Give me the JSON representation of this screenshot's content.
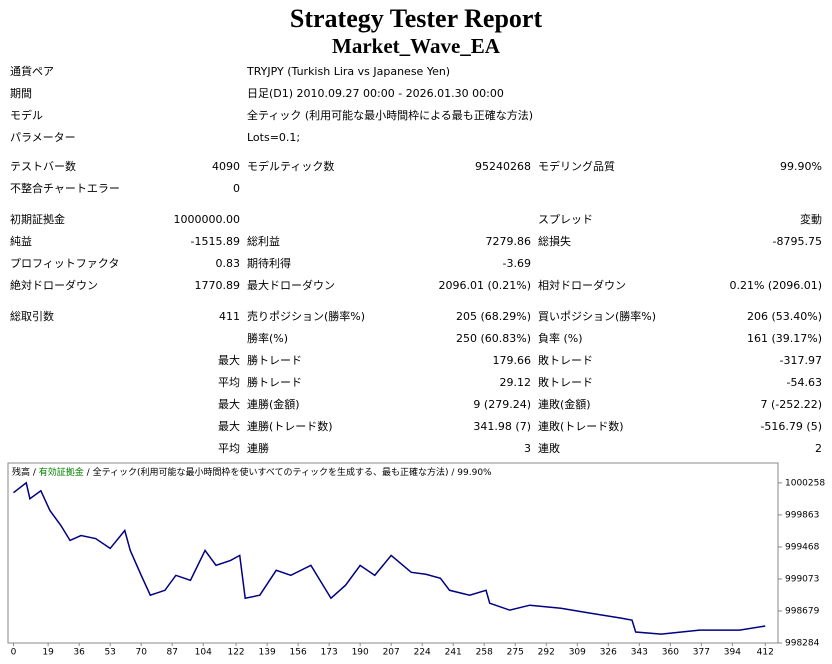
{
  "header": {
    "title": "Strategy Tester Report",
    "subtitle": "Market_Wave_EA"
  },
  "info": [
    [
      "通貨ペア",
      "TRYJPY (Turkish Lira vs Japanese Yen)"
    ],
    [
      "期間",
      "日足(D1) 2010.09.27 00:00 - 2026.01.30 00:00"
    ],
    [
      "モデル",
      "全ティック (利用可能な最小時間枠による最も正確な方法)"
    ],
    [
      "パラメーター",
      "Lots=0.1;"
    ]
  ],
  "stats": [
    [
      "テストバー数",
      "4090",
      "モデルティック数",
      "95240268",
      "モデリング品質",
      "99.90%"
    ],
    [
      "不整合チャートエラー",
      "0",
      null,
      null,
      null,
      null
    ],
    [
      "初期証拠金",
      "1000000.00",
      null,
      null,
      "スプレッド",
      "変動"
    ],
    [
      "純益",
      "-1515.89",
      "総利益",
      "7279.86",
      "総損失",
      "-8795.75"
    ],
    [
      "プロフィットファクタ",
      "0.83",
      "期待利得",
      "-3.69",
      null,
      null
    ],
    [
      "絶対ドローダウン",
      "1770.89",
      "最大ドローダウン",
      "2096.01 (0.21%)",
      "相対ドローダウン",
      "0.21% (2096.01)"
    ],
    [
      "総取引数",
      "411",
      "売りポジション(勝率%)",
      "205 (68.29%)",
      "買いポジション(勝率%)",
      "206 (53.40%)"
    ],
    [
      null,
      null,
      "勝率(%)",
      "250 (60.83%)",
      "負率 (%)",
      "161 (39.17%)"
    ],
    [
      null,
      "最大",
      "勝トレード",
      "179.66",
      "敗トレード",
      "-317.97"
    ],
    [
      null,
      "平均",
      "勝トレード",
      "29.12",
      "敗トレード",
      "-54.63"
    ],
    [
      null,
      "最大",
      "連勝(金額)",
      "9 (279.24)",
      "連敗(金額)",
      "7 (-252.22)"
    ],
    [
      null,
      "最大",
      "連勝(トレード数)",
      "341.98 (7)",
      "連敗(トレード数)",
      "-516.79 (5)"
    ],
    [
      null,
      "平均",
      "連勝",
      "3",
      "連敗",
      "2"
    ]
  ],
  "chart_data": {
    "type": "line",
    "series": [
      {
        "name": "残高",
        "color": "#000080",
        "x": [
          0,
          7,
          9,
          15,
          20,
          26,
          31,
          37,
          45,
          53,
          61,
          64,
          70,
          75,
          83,
          89,
          97,
          105,
          111,
          119,
          124,
          127,
          135,
          144,
          152,
          163,
          174,
          182,
          190,
          198,
          207,
          218,
          226,
          234,
          239,
          250,
          259,
          261,
          272,
          283,
          300,
          316,
          333,
          339,
          341,
          355,
          376,
          398,
          412
        ],
        "values": [
          1000137,
          1000259,
          1000063,
          1000161,
          999916,
          999732,
          999548,
          999609,
          999572,
          999450,
          999671,
          999425,
          999118,
          998873,
          998934,
          999118,
          999057,
          999425,
          999241,
          999302,
          999364,
          998836,
          998873,
          999180,
          999118,
          999241,
          998836,
          998996,
          999241,
          999118,
          999364,
          999155,
          999131,
          999082,
          998934,
          998873,
          998934,
          998775,
          998689,
          998750,
          998713,
          998652,
          998591,
          998566,
          998419,
          998394,
          998443,
          998443,
          998493
        ]
      }
    ],
    "equity_label": "有効証拠金",
    "equity_color": "#008000",
    "model_label": "全ティック(利用可能な最小時間枠を使いすべてのティックを生成する、最も正確な方法)",
    "quality": "99.90%",
    "xlim": [
      -3,
      419
    ],
    "ylim": [
      998284,
      1000503
    ],
    "xticks": [
      0,
      19,
      36,
      53,
      70,
      87,
      104,
      122,
      139,
      156,
      173,
      190,
      207,
      224,
      241,
      258,
      275,
      292,
      309,
      326,
      343,
      360,
      377,
      394,
      412
    ],
    "yticks": [
      998284,
      998679,
      999073,
      999468,
      999863,
      1000258
    ]
  }
}
